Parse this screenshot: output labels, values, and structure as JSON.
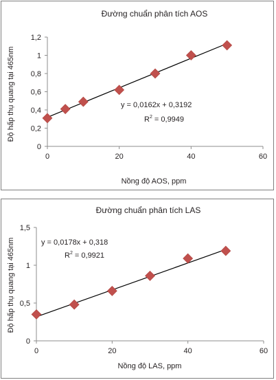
{
  "colors": {
    "marker": "#c0504d",
    "line": "#000000",
    "axis": "#8c8c8c",
    "text": "#231f20"
  },
  "chart_data": [
    {
      "type": "scatter",
      "title": "Đường chuẩn phân tích AOS",
      "xlabel": "Nồng độ AOS, ppm",
      "ylabel": "Độ hấp thụ quang tại 465nm",
      "xlim": [
        0,
        60
      ],
      "ylim": [
        0,
        1.2
      ],
      "xticks": [
        "0",
        "20",
        "40",
        "60"
      ],
      "yticks": [
        "0",
        "0,2",
        "0,4",
        "0,6",
        "0,8",
        "1",
        "1,2"
      ],
      "grid": false,
      "x": [
        0,
        5,
        10,
        20,
        30,
        40,
        50
      ],
      "y": [
        0.31,
        0.41,
        0.49,
        0.62,
        0.8,
        1.0,
        1.11
      ],
      "trendline": {
        "slope": 0.0162,
        "intercept": 0.3192,
        "x_range": [
          0,
          50
        ]
      },
      "equation": "y = 0,0162x + 0,3192",
      "r2_label": "R",
      "r2_sup": "2",
      "r2_value": " = 0,9949"
    },
    {
      "type": "scatter",
      "title": "Đường chuẩn phân tích LAS",
      "xlabel": "Nồng độ LAS, ppm",
      "ylabel": "Độ hấp thụ quang tại 465nm",
      "xlim": [
        0,
        60
      ],
      "ylim": [
        0,
        1.5
      ],
      "xticks": [
        "0",
        "20",
        "40",
        "60"
      ],
      "yticks": [
        "0",
        "0,5",
        "1",
        "1,5"
      ],
      "grid": false,
      "x": [
        0,
        10,
        20,
        30,
        40,
        50
      ],
      "y": [
        0.35,
        0.48,
        0.66,
        0.86,
        1.09,
        1.19
      ],
      "trendline": {
        "slope": 0.0178,
        "intercept": 0.318,
        "x_range": [
          0,
          50
        ]
      },
      "equation": "y = 0,0178x + 0,318",
      "r2_label": "R",
      "r2_sup": "2",
      "r2_value": " = 0,9921"
    }
  ]
}
